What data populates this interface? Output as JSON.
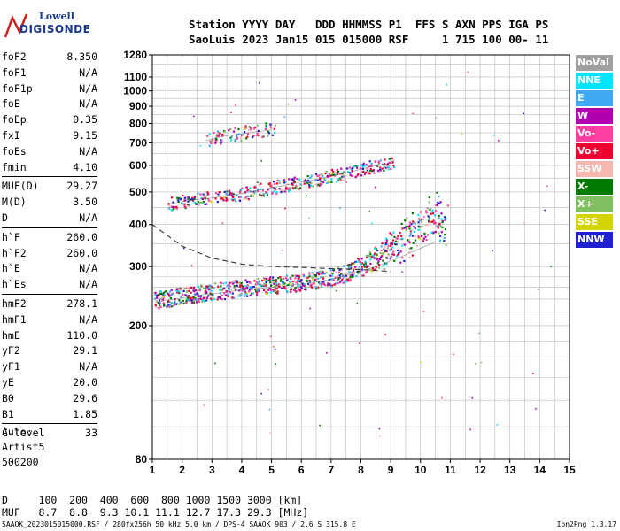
{
  "logo": {
    "brand": "Lowell",
    "product": "DIGISONDE"
  },
  "header": {
    "line1": "Station YYYY DAY   DDD HHMMSS P1  FFS S AXN PPS IGA PS",
    "line2": "SaoLuis 2023 Jan15 015 015000 RSF     1 715 100 00- 11"
  },
  "params": {
    "g1": [
      {
        "name": "foF2",
        "value": "8.350"
      },
      {
        "name": "foF1",
        "value": "N/A"
      },
      {
        "name": "foF1p",
        "value": "N/A"
      },
      {
        "name": "foE",
        "value": "N/A"
      },
      {
        "name": "foEp",
        "value": "0.35"
      },
      {
        "name": "fxI",
        "value": "9.15"
      },
      {
        "name": "foEs",
        "value": "N/A"
      },
      {
        "name": "fmin",
        "value": "4.10"
      }
    ],
    "g2": [
      {
        "name": "MUF(D)",
        "value": "29.27"
      },
      {
        "name": "M(D)",
        "value": "3.50"
      },
      {
        "name": "D",
        "value": "N/A"
      }
    ],
    "g3": [
      {
        "name": "h`F",
        "value": "260.0"
      },
      {
        "name": "h`F2",
        "value": "260.0"
      },
      {
        "name": "h`E",
        "value": "N/A"
      },
      {
        "name": "h`Es",
        "value": "N/A"
      }
    ],
    "g4": [
      {
        "name": "hmF2",
        "value": "278.1"
      },
      {
        "name": "hmF1",
        "value": "N/A"
      },
      {
        "name": "hmE",
        "value": "110.0"
      },
      {
        "name": "yF2",
        "value": "29.1"
      },
      {
        "name": "yF1",
        "value": "N/A"
      },
      {
        "name": "yE",
        "value": "20.0"
      },
      {
        "name": "B0",
        "value": "29.6"
      },
      {
        "name": "B1",
        "value": "1.85"
      }
    ],
    "g5": [
      {
        "name": "C-level",
        "value": "33"
      }
    ]
  },
  "auto": {
    "l1": "Auto:",
    "l2": "Artist5",
    "l3": "500200"
  },
  "legend": [
    {
      "label": "NoVal",
      "color": "#a0a0a0"
    },
    {
      "label": "NNE",
      "color": "#00e5ff"
    },
    {
      "label": "E",
      "color": "#3fa9f5"
    },
    {
      "label": "W",
      "color": "#b000b0"
    },
    {
      "label": "Vo-",
      "color": "#ff3fa0"
    },
    {
      "label": "Vo+",
      "color": "#ee0030"
    },
    {
      "label": "SSW",
      "color": "#f5b8b0"
    },
    {
      "label": "X-",
      "color": "#007a00"
    },
    {
      "label": "X+",
      "color": "#7fbf5f"
    },
    {
      "label": "SSE",
      "color": "#d4d400"
    },
    {
      "label": "NNW",
      "color": "#2020d0"
    }
  ],
  "footer": {
    "d_line": "D     100  200  400  600  800 1000 1500 3000 [km]",
    "muf_line": "MUF   8.7  8.8  9.3 10.1 11.1 12.7 17.3 29.3 [MHz]",
    "bottom": "SAAOK_2023015015000.RSF / 280fx256h 50 kHz 5.0 km / DPS-4 SAAOK 903 / 2.6 S 315.8 E",
    "version": "Ion2Png 1.3.17"
  },
  "chart_data": {
    "type": "scatter",
    "xlim": [
      1,
      15
    ],
    "ylim": [
      80,
      1280
    ],
    "xticks": [
      "1",
      "2",
      "3",
      "4",
      "5",
      "6",
      "7",
      "8",
      "9",
      "10",
      "11",
      "12",
      "13",
      "14",
      "15"
    ],
    "yticks": [
      "80",
      "200",
      "300",
      "400",
      "500",
      "600",
      "700",
      "800",
      "900",
      "1000",
      "1100",
      "1280"
    ],
    "grid": true,
    "ylog": true,
    "traces": [
      {
        "name": "F trace",
        "x": [
          1.1,
          1.5,
          2.0,
          2.5,
          3.0,
          3.5,
          4.0,
          4.5,
          5.0,
          5.5,
          6.0,
          6.5,
          7.0,
          7.5,
          8.0,
          8.5,
          9.0,
          9.5,
          10.0,
          10.5
        ],
        "y": [
          235,
          238,
          242,
          246,
          249,
          252,
          255,
          258,
          260,
          263,
          266,
          270,
          275,
          282,
          290,
          300,
          312,
          325,
          340,
          355
        ]
      },
      {
        "name": "2F trace",
        "x": [
          1.5,
          2.0,
          2.5,
          3.0,
          3.5,
          4.0,
          4.5,
          5.0,
          5.5,
          6.0,
          6.5,
          7.0,
          7.5,
          8.0,
          8.5,
          9.0
        ],
        "y": [
          460,
          468,
          475,
          480,
          488,
          495,
          505,
          515,
          525,
          535,
          545,
          558,
          570,
          585,
          598,
          610
        ]
      },
      {
        "name": "3F trace",
        "x": [
          2.8,
          3.0,
          3.3,
          3.6,
          4.0,
          4.3,
          4.6,
          5.0
        ],
        "y": [
          710,
          720,
          730,
          738,
          745,
          752,
          758,
          765
        ]
      }
    ],
    "profile": {
      "x": [
        1.0,
        2.0,
        3.0,
        4.0,
        5.0,
        6.0,
        7.0,
        8.0,
        9.0
      ],
      "y": [
        400,
        345,
        318,
        305,
        300,
        298,
        296,
        294,
        290
      ]
    }
  }
}
